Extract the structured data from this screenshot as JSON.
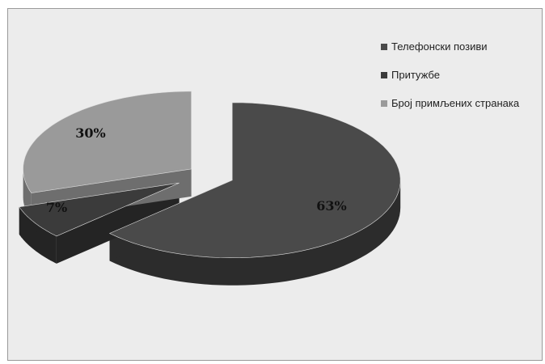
{
  "chart_data": {
    "type": "pie",
    "style": "3d-exploded",
    "title": "",
    "legend_position": "right",
    "slices": [
      {
        "name": "Телефонски позиви",
        "value": 63,
        "label": "63%",
        "color": "#4a4a4a",
        "side_color": "#2c2c2c"
      },
      {
        "name": "Притужбе",
        "value": 7,
        "label": "7%",
        "color": "#3b3b3b",
        "side_color": "#242424"
      },
      {
        "name": "Број примљених странака",
        "value": 30,
        "label": "30%",
        "color": "#9a9a9a",
        "side_color": "#6e6e6e"
      }
    ]
  }
}
